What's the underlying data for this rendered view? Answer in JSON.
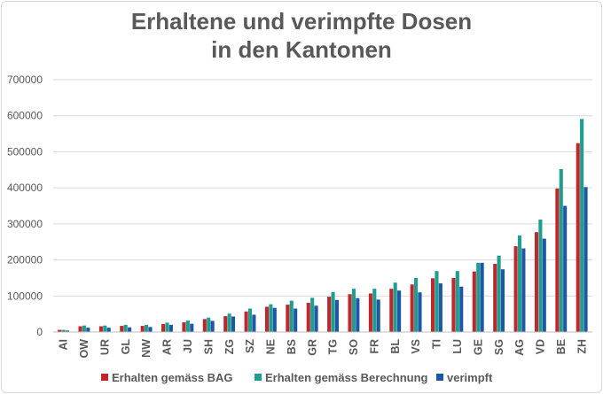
{
  "chart_data": {
    "type": "bar",
    "title_line1": "Erhaltene und verimpfte Dosen",
    "title_line2": "in den Kantonen",
    "xlabel": "",
    "ylabel": "",
    "ylim": [
      0,
      700000
    ],
    "yticks": [
      "0",
      "100000",
      "200000",
      "300000",
      "400000",
      "500000",
      "600000",
      "700000"
    ],
    "grid": true,
    "legend_position": "bottom",
    "categories": [
      "AI",
      "OW",
      "UR",
      "GL",
      "NW",
      "AR",
      "JU",
      "SH",
      "ZG",
      "SZ",
      "NE",
      "BS",
      "GR",
      "TG",
      "SO",
      "FR",
      "BL",
      "VS",
      "TI",
      "LU",
      "GE",
      "SG",
      "AG",
      "VD",
      "BE",
      "ZH"
    ],
    "series": [
      {
        "name": "Erhalten gemäss BAG",
        "color": "#c0272d",
        "values": [
          6000,
          16000,
          16000,
          17000,
          17000,
          22000,
          27000,
          36000,
          44000,
          57000,
          70000,
          76000,
          81000,
          98000,
          105000,
          107000,
          120000,
          132000,
          149000,
          150000,
          168000,
          189000,
          238000,
          277000,
          398000,
          524000
        ]
      },
      {
        "name": "Erhalten gemäss Berechnung",
        "color": "#1e9e8e",
        "values": [
          6000,
          18000,
          18000,
          20000,
          20000,
          26000,
          32000,
          40000,
          51000,
          65000,
          77000,
          87000,
          95000,
          111000,
          120000,
          120000,
          137000,
          150000,
          169000,
          169000,
          192000,
          212000,
          268000,
          312000,
          452000,
          591000
        ]
      },
      {
        "name": "verimpft",
        "color": "#1d57a6",
        "values": [
          4000,
          12000,
          12000,
          13000,
          14000,
          20000,
          23000,
          31000,
          43000,
          48000,
          67000,
          65000,
          73000,
          89000,
          94000,
          90000,
          115000,
          110000,
          135000,
          126000,
          192000,
          174000,
          232000,
          259000,
          350000,
          402000
        ]
      }
    ]
  }
}
